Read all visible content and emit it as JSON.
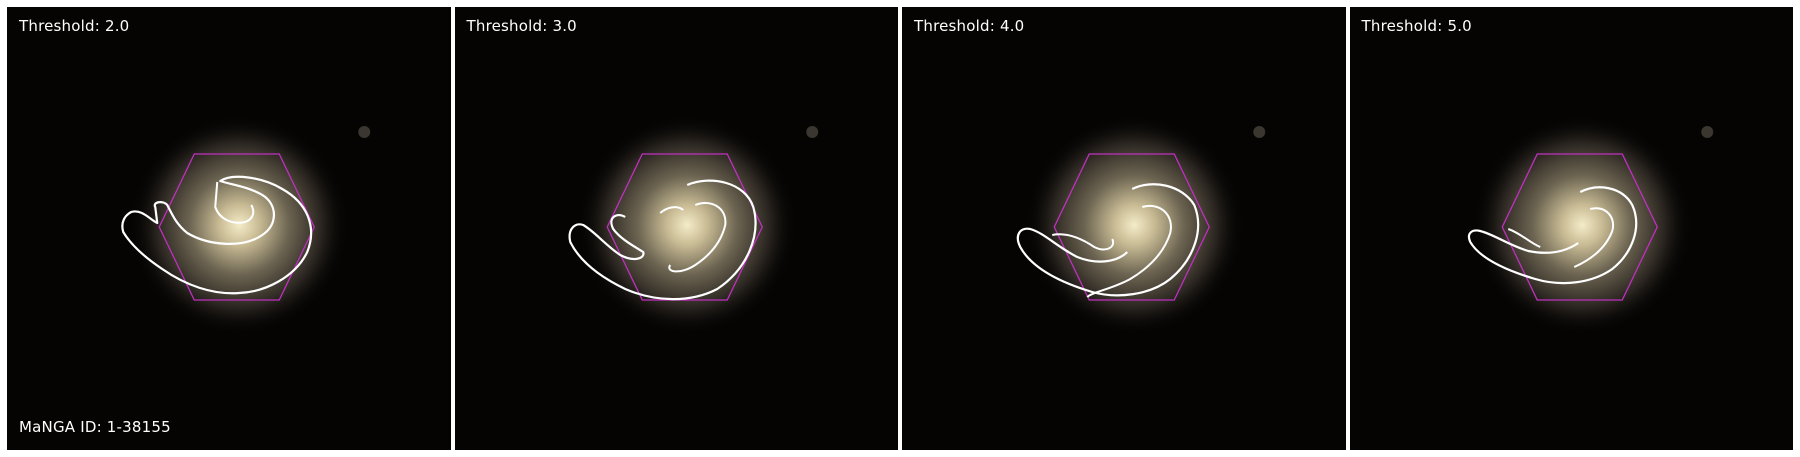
{
  "panels": [
    {
      "label": "Threshold: 2.0",
      "threshold": 2.0
    },
    {
      "label": "Threshold: 3.0",
      "threshold": 3.0
    },
    {
      "label": "Threshold: 4.0",
      "threshold": 4.0
    },
    {
      "label": "Threshold: 5.0",
      "threshold": 5.0
    }
  ],
  "galaxy_id_label": "MaNGA ID: 1-38155",
  "colors": {
    "background": "#050403",
    "hexagon": "#c030c0",
    "contour": "#ffffff",
    "galaxy_core": "#f2e9c4"
  }
}
